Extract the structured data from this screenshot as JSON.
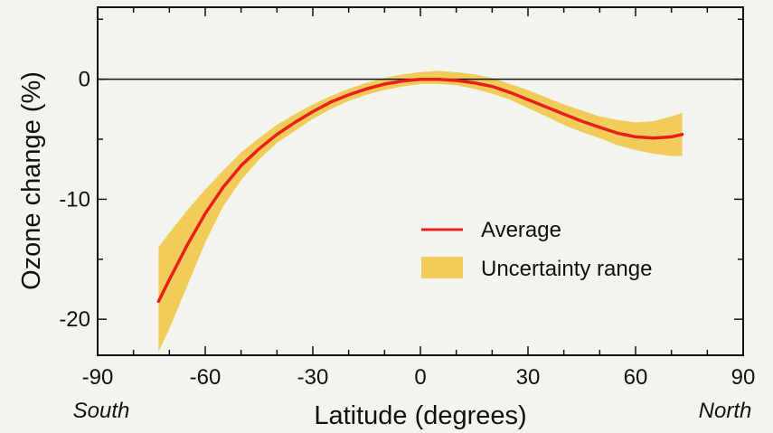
{
  "chart_data": {
    "type": "line",
    "xlabel": "Latitude (degrees)",
    "ylabel": "Ozone change (%)",
    "xlim": [
      -90,
      90
    ],
    "ylim": [
      -23,
      6
    ],
    "x_ticks": [
      -90,
      -60,
      -30,
      0,
      30,
      60,
      90
    ],
    "x_tick_labels": [
      "-90",
      "-60",
      "-30",
      "0",
      "30",
      "60",
      "90"
    ],
    "y_ticks": [
      0,
      -10,
      -20
    ],
    "y_tick_labels": [
      "0",
      "-10",
      "-20"
    ],
    "x_direction_labels": {
      "left": "South",
      "right": "North"
    },
    "zero_line": true,
    "grid": false,
    "legend_position": "center-right",
    "legend": [
      "Average",
      "Uncertainty range"
    ],
    "colors": {
      "average": "#e8201c",
      "uncertainty": "#f2cc5a",
      "background": "#f3f4ee"
    },
    "series": [
      {
        "name": "Average",
        "x": [
          -73,
          -70,
          -65,
          -60,
          -55,
          -50,
          -45,
          -40,
          -35,
          -30,
          -25,
          -20,
          -15,
          -10,
          -5,
          0,
          5,
          10,
          15,
          20,
          25,
          30,
          35,
          40,
          45,
          50,
          55,
          60,
          65,
          70,
          73
        ],
        "values": [
          -18.5,
          -16.7,
          -13.8,
          -11.2,
          -9.0,
          -7.2,
          -5.8,
          -4.6,
          -3.6,
          -2.7,
          -1.9,
          -1.3,
          -0.8,
          -0.4,
          -0.15,
          0.0,
          0.0,
          -0.1,
          -0.3,
          -0.6,
          -1.1,
          -1.7,
          -2.3,
          -2.9,
          -3.5,
          -4.0,
          -4.5,
          -4.8,
          -4.9,
          -4.8,
          -4.6
        ]
      }
    ],
    "uncertainty_range": {
      "name": "Uncertainty range",
      "x": [
        -73,
        -70,
        -65,
        -60,
        -55,
        -50,
        -45,
        -40,
        -35,
        -30,
        -25,
        -20,
        -15,
        -10,
        -5,
        0,
        5,
        10,
        15,
        20,
        25,
        30,
        35,
        40,
        45,
        50,
        55,
        60,
        65,
        70,
        73
      ],
      "upper": [
        -14.0,
        -12.8,
        -10.9,
        -9.2,
        -7.6,
        -6.1,
        -4.9,
        -3.8,
        -2.9,
        -2.1,
        -1.4,
        -0.8,
        -0.3,
        0.1,
        0.4,
        0.6,
        0.7,
        0.6,
        0.4,
        0.1,
        -0.4,
        -0.9,
        -1.5,
        -2.1,
        -2.6,
        -3.1,
        -3.4,
        -3.6,
        -3.5,
        -3.1,
        -2.8
      ],
      "lower": [
        -22.7,
        -20.8,
        -17.2,
        -13.6,
        -10.6,
        -8.4,
        -6.7,
        -5.3,
        -4.3,
        -3.3,
        -2.5,
        -1.8,
        -1.3,
        -0.9,
        -0.6,
        -0.4,
        -0.4,
        -0.5,
        -0.8,
        -1.2,
        -1.7,
        -2.4,
        -3.1,
        -3.8,
        -4.4,
        -4.9,
        -5.5,
        -5.9,
        -6.2,
        -6.4,
        -6.4
      ]
    }
  }
}
